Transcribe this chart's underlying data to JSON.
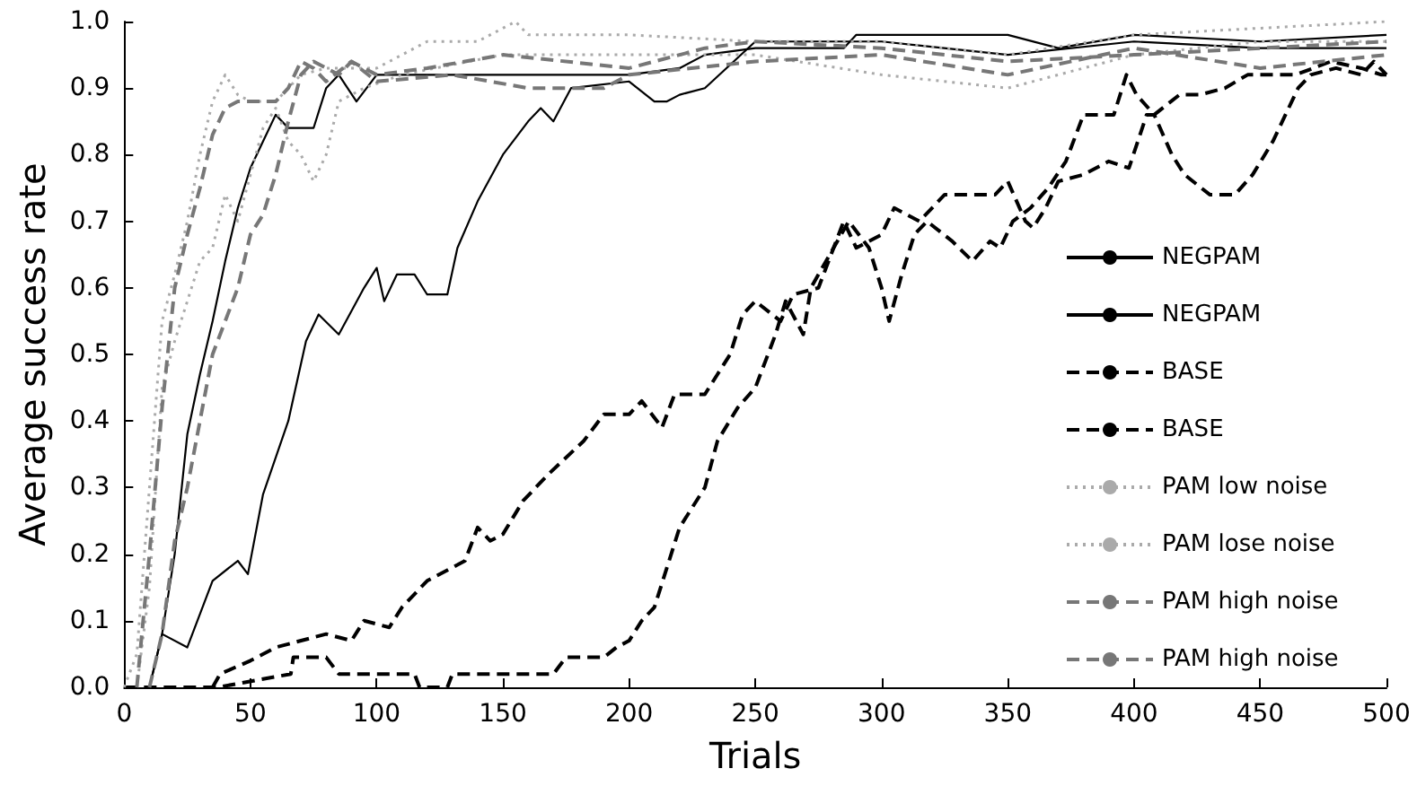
{
  "chart_data": {
    "type": "line",
    "xlabel": "Trials",
    "ylabel": "Average success rate",
    "xlim": [
      0,
      500
    ],
    "xticks": [
      0,
      50,
      100,
      150,
      200,
      250,
      300,
      350,
      400,
      450,
      500
    ],
    "ylim": [
      0,
      1
    ],
    "yticks": [
      {
        "value": 0,
        "label": "0.0"
      },
      0.1,
      0.2,
      0.3,
      0.4,
      0.5,
      0.6,
      0.7,
      0.8,
      0.9,
      {
        "value": 1,
        "label": "1.0"
      }
    ],
    "grid": false,
    "legend": "bottom right",
    "marker": "none",
    "series": [
      {
        "name": "NEGPAM",
        "color": "#000000",
        "line_style": "solid",
        "x": [
          10,
          15,
          20,
          25,
          30,
          35,
          40,
          45,
          50,
          55,
          60,
          65,
          75,
          80,
          85,
          92,
          100,
          150,
          200,
          220,
          230,
          250,
          285,
          290,
          350,
          370,
          400,
          450,
          500
        ],
        "values": [
          0,
          0.08,
          0.2,
          0.38,
          0.47,
          0.55,
          0.64,
          0.72,
          0.78,
          0.82,
          0.86,
          0.84,
          0.84,
          0.9,
          0.92,
          0.88,
          0.92,
          0.92,
          0.92,
          0.93,
          0.95,
          0.96,
          0.96,
          0.98,
          0.98,
          0.96,
          0.98,
          0.97,
          0.98
        ]
      },
      {
        "name": "NEGPAM",
        "color": "#000000",
        "line_style": "solid",
        "x": [
          10,
          15,
          25,
          35,
          45,
          49,
          55,
          65,
          72,
          77,
          85,
          95,
          100,
          103,
          108,
          115,
          120,
          128,
          132,
          140,
          150,
          160,
          165,
          170,
          177,
          200,
          210,
          215,
          220,
          230,
          250,
          300,
          350,
          400,
          450,
          500
        ],
        "values": [
          0,
          0.08,
          0.06,
          0.16,
          0.19,
          0.17,
          0.29,
          0.4,
          0.52,
          0.56,
          0.53,
          0.6,
          0.63,
          0.58,
          0.62,
          0.62,
          0.59,
          0.59,
          0.66,
          0.73,
          0.8,
          0.85,
          0.87,
          0.85,
          0.9,
          0.91,
          0.88,
          0.88,
          0.89,
          0.9,
          0.97,
          0.97,
          0.95,
          0.97,
          0.96,
          0.96
        ]
      },
      {
        "name": "BASE",
        "color": "#000000",
        "line_style": "dashed",
        "x": [
          35,
          38,
          50,
          60,
          80,
          90,
          95,
          105,
          110,
          120,
          130,
          135,
          140,
          145,
          150,
          158,
          168,
          182,
          190,
          200,
          205,
          213,
          218,
          230,
          235,
          240,
          245,
          250,
          260,
          265,
          275,
          285,
          290,
          295,
          300,
          305,
          315,
          325,
          345,
          350,
          357,
          360,
          365,
          370,
          380,
          390,
          398,
          405,
          408,
          415,
          420,
          430,
          440,
          447,
          455,
          465,
          470,
          480,
          490,
          495,
          500
        ],
        "values": [
          0,
          0.02,
          0.04,
          0.06,
          0.08,
          0.07,
          0.1,
          0.09,
          0.12,
          0.16,
          0.18,
          0.19,
          0.24,
          0.22,
          0.23,
          0.28,
          0.32,
          0.37,
          0.41,
          0.41,
          0.43,
          0.39,
          0.44,
          0.44,
          0.47,
          0.5,
          0.56,
          0.58,
          0.55,
          0.59,
          0.6,
          0.7,
          0.66,
          0.67,
          0.68,
          0.72,
          0.7,
          0.74,
          0.74,
          0.76,
          0.7,
          0.69,
          0.72,
          0.76,
          0.77,
          0.79,
          0.78,
          0.86,
          0.86,
          0.8,
          0.77,
          0.74,
          0.74,
          0.77,
          0.82,
          0.9,
          0.92,
          0.93,
          0.92,
          0.94,
          0.92
        ]
      },
      {
        "name": "BASE",
        "color": "#000000",
        "line_style": "dashed",
        "x": [
          0,
          37,
          66,
          67,
          80,
          85,
          115,
          117,
          128,
          130,
          170,
          175,
          190,
          195,
          200,
          205,
          210,
          215,
          220,
          225,
          230,
          235,
          243,
          250,
          254,
          258,
          262,
          269,
          272,
          281,
          287,
          295,
          300,
          303,
          308,
          313,
          318,
          328,
          336,
          343,
          347,
          352,
          359,
          366,
          373,
          380,
          392,
          397,
          401,
          408,
          418,
          426,
          436,
          445,
          464,
          478,
          490,
          498,
          500
        ],
        "values": [
          0,
          0,
          0.02,
          0.045,
          0.045,
          0.02,
          0.02,
          0,
          0,
          0.02,
          0.02,
          0.045,
          0.045,
          0.06,
          0.07,
          0.1,
          0.12,
          0.18,
          0.24,
          0.27,
          0.3,
          0.37,
          0.42,
          0.45,
          0.49,
          0.53,
          0.58,
          0.53,
          0.6,
          0.66,
          0.7,
          0.66,
          0.6,
          0.55,
          0.62,
          0.68,
          0.7,
          0.67,
          0.64,
          0.67,
          0.66,
          0.7,
          0.72,
          0.75,
          0.79,
          0.86,
          0.86,
          0.92,
          0.89,
          0.86,
          0.89,
          0.89,
          0.9,
          0.92,
          0.92,
          0.94,
          0.93,
          0.92,
          0.92
        ]
      },
      {
        "name": "PAM low noise",
        "color": "#aaaaaa",
        "line_style": "dotted",
        "x": [
          0,
          5,
          10,
          15,
          20,
          25,
          30,
          35,
          40,
          45,
          50,
          60,
          65,
          70,
          80,
          100,
          110,
          120,
          140,
          150,
          155,
          160,
          200,
          250,
          300,
          350,
          400,
          450,
          500
        ],
        "values": [
          0,
          0.05,
          0.3,
          0.55,
          0.62,
          0.7,
          0.8,
          0.88,
          0.92,
          0.89,
          0.88,
          0.88,
          0.9,
          0.92,
          0.93,
          0.93,
          0.95,
          0.97,
          0.97,
          0.99,
          1,
          0.98,
          0.98,
          0.97,
          0.97,
          0.95,
          0.98,
          0.99,
          1
        ]
      },
      {
        "name": "PAM lose noise",
        "color": "#aaaaaa",
        "line_style": "dotted",
        "x": [
          5,
          10,
          15,
          20,
          30,
          35,
          40,
          45,
          50,
          55,
          60,
          65,
          70,
          75,
          80,
          85,
          95,
          110,
          150,
          200,
          250,
          300,
          350,
          400,
          450,
          500
        ],
        "values": [
          0,
          0.15,
          0.45,
          0.52,
          0.64,
          0.66,
          0.74,
          0.7,
          0.77,
          0.84,
          0.87,
          0.82,
          0.8,
          0.76,
          0.8,
          0.88,
          0.9,
          0.92,
          0.95,
          0.95,
          0.95,
          0.92,
          0.9,
          0.95,
          0.97,
          0.97
        ]
      },
      {
        "name": "PAM high noise",
        "color": "#777777",
        "line_style": "dashed",
        "x": [
          5,
          10,
          15,
          20,
          25,
          30,
          35,
          40,
          45,
          60,
          65,
          70,
          75,
          80,
          90,
          100,
          120,
          150,
          200,
          230,
          250,
          300,
          350,
          400,
          450,
          500
        ],
        "values": [
          0,
          0.2,
          0.42,
          0.6,
          0.68,
          0.75,
          0.83,
          0.87,
          0.88,
          0.88,
          0.9,
          0.94,
          0.93,
          0.91,
          0.94,
          0.92,
          0.93,
          0.95,
          0.93,
          0.96,
          0.97,
          0.96,
          0.94,
          0.95,
          0.96,
          0.97
        ]
      },
      {
        "name": "PAM high noise",
        "color": "#777777",
        "line_style": "dashed",
        "x": [
          10,
          15,
          20,
          25,
          35,
          45,
          50,
          55,
          60,
          65,
          70,
          75,
          85,
          90,
          100,
          130,
          160,
          190,
          200,
          250,
          300,
          350,
          400,
          450,
          500
        ],
        "values": [
          0,
          0.08,
          0.22,
          0.3,
          0.5,
          0.6,
          0.68,
          0.71,
          0.77,
          0.85,
          0.92,
          0.94,
          0.92,
          0.94,
          0.91,
          0.92,
          0.9,
          0.9,
          0.92,
          0.94,
          0.95,
          0.92,
          0.96,
          0.93,
          0.95
        ]
      }
    ]
  }
}
